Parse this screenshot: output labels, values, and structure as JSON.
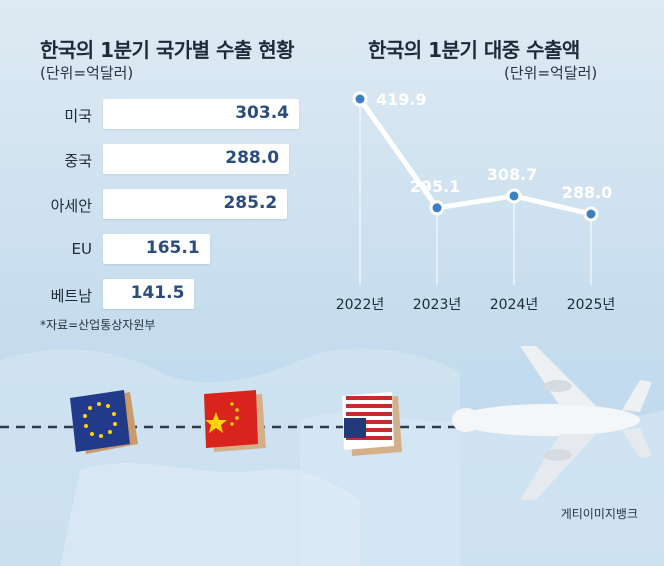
{
  "left_chart": {
    "title": "한국의 1분기 국가별 수출 현황",
    "unit": "(단위=억달러)",
    "source": "*자료=산업통상자원부"
  },
  "right_chart": {
    "title": "한국의 1분기 대중 수출액",
    "unit": "(단위=억달러)"
  },
  "credit": "게티이미지뱅크",
  "colors": {
    "line": "#ffffff",
    "bar": "#ffffff",
    "bar_value_text": "#2b4d7e",
    "background": "#c9dfee"
  },
  "chart_data": [
    {
      "type": "bar",
      "orientation": "horizontal",
      "title": "한국의 1분기 국가별 수출 현황",
      "unit": "(단위=억달러)",
      "categories": [
        "미국",
        "중국",
        "아세안",
        "EU",
        "베트남"
      ],
      "values": [
        303.4,
        288.0,
        285.2,
        165.1,
        141.5
      ],
      "value_labels": [
        "303.4",
        "288.0",
        "285.2",
        "165.1",
        "141.5"
      ],
      "xlim": [
        0,
        303.4
      ],
      "grid": false
    },
    {
      "type": "line",
      "title": "한국의 1분기 대중 수출액",
      "unit": "(단위=억달러)",
      "x": [
        "2022년",
        "2023년",
        "2024년",
        "2025년"
      ],
      "values": [
        419.9,
        295.1,
        308.7,
        288.0
      ],
      "value_labels": [
        "419.9",
        "295.1",
        "308.7",
        "288.0"
      ],
      "ylim": [
        288.0,
        419.9
      ],
      "grid": false
    }
  ],
  "illustration": {
    "items": [
      "eu-flag-box",
      "china-flag-box",
      "usa-flag-box",
      "airplane"
    ]
  }
}
